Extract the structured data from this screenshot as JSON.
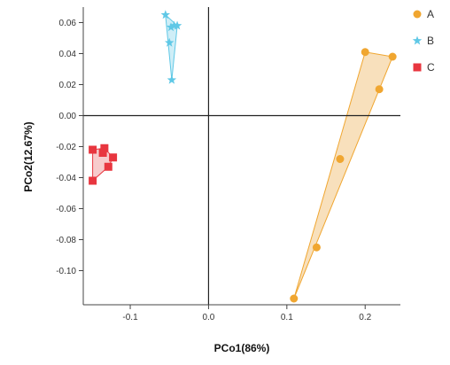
{
  "chart_data": {
    "type": "scatter",
    "xlabel": "PCo1(86%)",
    "ylabel": "PCo2(12.67%)",
    "xlim": [
      -0.16,
      0.245
    ],
    "ylim": [
      -0.122,
      0.07
    ],
    "x_ticks": [
      -0.1,
      0.0,
      0.1,
      0.2
    ],
    "x_tick_labels": [
      "-0.1",
      "0.0",
      "0.1",
      "0.2"
    ],
    "y_ticks": [
      0.06,
      0.04,
      0.02,
      0.0,
      -0.02,
      -0.04,
      -0.06,
      -0.08,
      -0.1
    ],
    "y_tick_labels": [
      "0.06",
      "0.04",
      "0.02",
      "0.00",
      "-0.02",
      "-0.04",
      "-0.06",
      "-0.08",
      "-0.10"
    ],
    "zero_lines": true,
    "grid": false,
    "legend_position": "top-right",
    "series": [
      {
        "name": "A",
        "marker": "circle",
        "color": "#f0a630",
        "fill": "#f5d6a5",
        "points": [
          [
            0.2,
            0.041
          ],
          [
            0.235,
            0.038
          ],
          [
            0.218,
            0.017
          ],
          [
            0.168,
            -0.028
          ],
          [
            0.138,
            -0.085
          ],
          [
            0.109,
            -0.118
          ]
        ],
        "hull": [
          [
            0.2,
            0.041
          ],
          [
            0.235,
            0.038
          ],
          [
            0.109,
            -0.118
          ]
        ]
      },
      {
        "name": "B",
        "marker": "star",
        "color": "#5fc8e6",
        "fill": "#bfe8f4",
        "points": [
          [
            -0.055,
            0.065
          ],
          [
            -0.048,
            0.057
          ],
          [
            -0.044,
            0.058
          ],
          [
            -0.04,
            0.058
          ],
          [
            -0.05,
            0.047
          ],
          [
            -0.047,
            0.023
          ]
        ],
        "hull": [
          [
            -0.055,
            0.065
          ],
          [
            -0.04,
            0.058
          ],
          [
            -0.047,
            0.023
          ]
        ]
      },
      {
        "name": "C",
        "marker": "square",
        "color": "#e8363f",
        "fill": "#f4b9bb",
        "points": [
          [
            -0.148,
            -0.022
          ],
          [
            -0.133,
            -0.021
          ],
          [
            -0.135,
            -0.024
          ],
          [
            -0.122,
            -0.027
          ],
          [
            -0.128,
            -0.033
          ],
          [
            -0.148,
            -0.042
          ]
        ],
        "hull": [
          [
            -0.148,
            -0.022
          ],
          [
            -0.133,
            -0.021
          ],
          [
            -0.122,
            -0.027
          ],
          [
            -0.128,
            -0.033
          ],
          [
            -0.148,
            -0.042
          ]
        ]
      }
    ]
  }
}
